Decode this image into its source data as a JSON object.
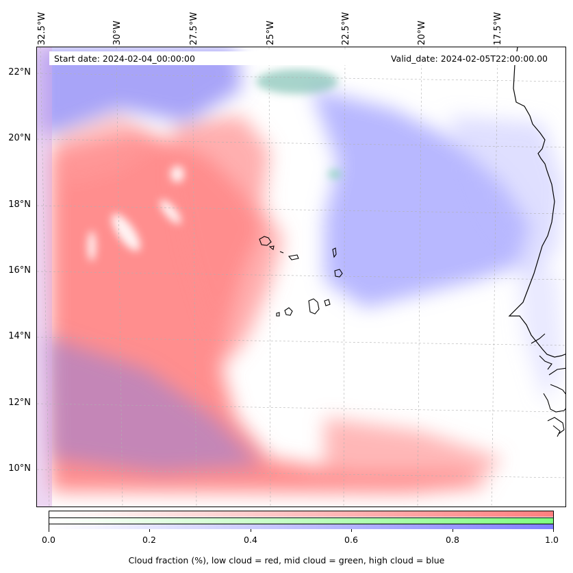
{
  "header": {
    "start_date": "Start date: 2024-02-04_00:00:00",
    "valid_date": "Valid_date: 2024-02-05T22:00:00.00"
  },
  "axes": {
    "lon_labels": [
      "32.5°W",
      "30°W",
      "27.5°W",
      "25°W",
      "22.5°W",
      "20°W",
      "17.5°W"
    ],
    "lat_labels": [
      "22°N",
      "20°N",
      "18°N",
      "16°N",
      "14°N",
      "12°N",
      "10°N"
    ]
  },
  "colorbar": {
    "ticks": [
      "0.0",
      "0.2",
      "0.4",
      "0.6",
      "0.8",
      "1.0"
    ],
    "caption": "Cloud fraction (%), low cloud = red, mid cloud = green, high cloud = blue",
    "colors": {
      "low": "#ff7f7f",
      "mid": "#7fff7f",
      "high": "#7f7fff"
    }
  },
  "map": {
    "colors": {
      "coast": "#000000",
      "grid": "#b0b0b0"
    }
  }
}
